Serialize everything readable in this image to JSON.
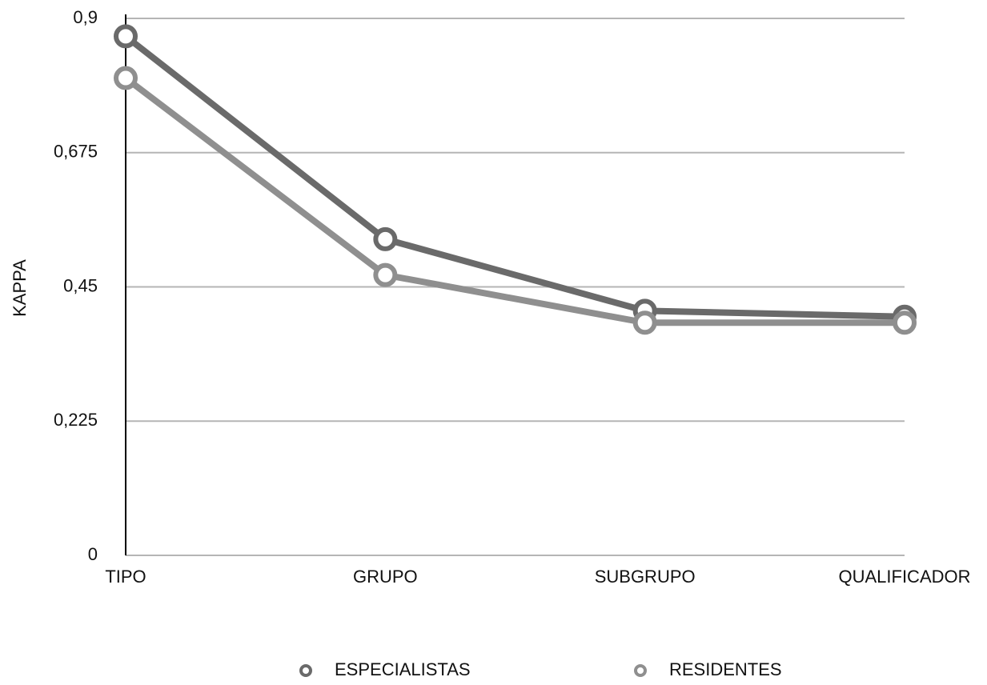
{
  "chart_data": {
    "type": "line",
    "y_label": "KAPPA",
    "categories": [
      "TIPO",
      "GRUPO",
      "SUBGRUPO",
      "QUALIFICADOR"
    ],
    "series": [
      {
        "name": "ESPECIALISTAS",
        "color": "#6a6a6a",
        "values": [
          0.87,
          0.53,
          0.41,
          0.4
        ]
      },
      {
        "name": "RESIDENTES",
        "color": "#8f8f8f",
        "values": [
          0.8,
          0.47,
          0.39,
          0.39
        ]
      }
    ],
    "ylim": [
      0,
      0.9
    ],
    "yticks": [
      0,
      {
        "value": 0.225,
        "label": "0,225"
      },
      {
        "value": 0.45,
        "label": "0,45"
      },
      {
        "value": 0.675,
        "label": "0,675"
      },
      {
        "value": 0.9,
        "label": "0,9"
      }
    ],
    "grid": true,
    "legend": "bottom"
  }
}
